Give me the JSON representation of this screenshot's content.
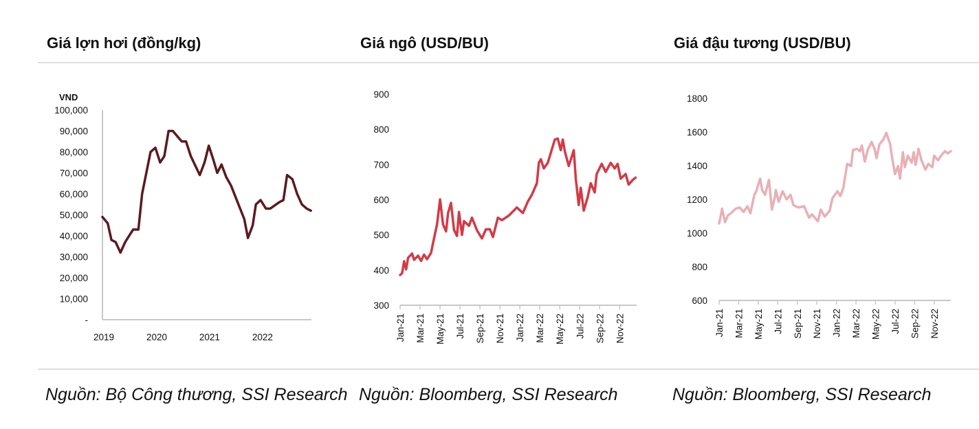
{
  "chart_data": [
    {
      "type": "line",
      "title": "Giá lợn hơi (đồng/kg)",
      "ylabel": "VND",
      "source": "Nguồn: Bộ Công thương, SSI Research",
      "color": "#5c1a1f",
      "ylim": [
        0,
        100000
      ],
      "yticks": [
        0,
        10000,
        20000,
        30000,
        40000,
        50000,
        60000,
        70000,
        80000,
        90000,
        100000
      ],
      "ytick_labels": [
        "-",
        "10,000",
        "20,000",
        "30,000",
        "40,000",
        "50,000",
        "60,000",
        "70,000",
        "80,000",
        "90,000",
        "100,000"
      ],
      "xlim": [
        2019,
        2022.95
      ],
      "xticks": [
        2019,
        2020,
        2021,
        2022
      ],
      "xtick_labels": [
        "2019",
        "2020",
        "2021",
        "2022"
      ],
      "points": [
        [
          2019.0,
          49000
        ],
        [
          2019.1,
          46000
        ],
        [
          2019.17,
          38000
        ],
        [
          2019.25,
          37000
        ],
        [
          2019.34,
          32000
        ],
        [
          2019.43,
          37000
        ],
        [
          2019.58,
          43000
        ],
        [
          2019.68,
          43000
        ],
        [
          2019.75,
          60000
        ],
        [
          2019.91,
          80000
        ],
        [
          2020.0,
          82000
        ],
        [
          2020.09,
          75000
        ],
        [
          2020.17,
          78000
        ],
        [
          2020.25,
          90000
        ],
        [
          2020.33,
          90000
        ],
        [
          2020.43,
          87000
        ],
        [
          2020.5,
          85000
        ],
        [
          2020.58,
          85000
        ],
        [
          2020.67,
          78000
        ],
        [
          2020.84,
          69000
        ],
        [
          2020.93,
          75000
        ],
        [
          2021.01,
          83000
        ],
        [
          2021.1,
          76000
        ],
        [
          2021.17,
          70000
        ],
        [
          2021.25,
          74000
        ],
        [
          2021.34,
          68000
        ],
        [
          2021.43,
          64000
        ],
        [
          2021.68,
          48000
        ],
        [
          2021.75,
          39000
        ],
        [
          2021.84,
          45000
        ],
        [
          2021.9,
          55000
        ],
        [
          2021.99,
          57000
        ],
        [
          2022.09,
          53000
        ],
        [
          2022.17,
          53000
        ],
        [
          2022.34,
          56000
        ],
        [
          2022.42,
          57000
        ],
        [
          2022.49,
          69000
        ],
        [
          2022.59,
          67000
        ],
        [
          2022.68,
          60000
        ],
        [
          2022.77,
          55000
        ],
        [
          2022.86,
          53000
        ],
        [
          2022.94,
          52000
        ]
      ]
    },
    {
      "type": "line",
      "title": "Giá ngô (USD/BU)",
      "source": "Nguồn: Bloomberg, SSI Research",
      "color": "#d33a46",
      "ylim": [
        300,
        900
      ],
      "yticks": [
        300,
        400,
        500,
        600,
        700,
        800,
        900
      ],
      "ytick_labels": [
        "300",
        "400",
        "500",
        "600",
        "700",
        "800",
        "900"
      ],
      "x_unit": "months since Jan-21",
      "xlim": [
        0,
        23.7
      ],
      "xticks": [
        0,
        2,
        4,
        6,
        8,
        10,
        12,
        14,
        16,
        18,
        20,
        22
      ],
      "xtick_labels": [
        "Jan-21",
        "Mar-21",
        "May-21",
        "Jul-21",
        "Sep-21",
        "Nov-21",
        "Jan-22",
        "Mar-22",
        "May-22",
        "Jul-22",
        "Sep-22",
        "Nov-22"
      ],
      "points": [
        [
          0,
          386
        ],
        [
          0.2,
          391
        ],
        [
          0.4,
          425
        ],
        [
          0.6,
          402
        ],
        [
          0.8,
          435
        ],
        [
          1.2,
          447
        ],
        [
          1.4,
          429
        ],
        [
          1.8,
          441
        ],
        [
          2.1,
          426
        ],
        [
          2.4,
          444
        ],
        [
          2.7,
          431
        ],
        [
          3.1,
          449
        ],
        [
          3.3,
          477
        ],
        [
          3.7,
          530
        ],
        [
          4.0,
          601
        ],
        [
          4.3,
          530
        ],
        [
          4.6,
          510
        ],
        [
          4.8,
          562
        ],
        [
          5.1,
          591
        ],
        [
          5.4,
          514
        ],
        [
          5.7,
          497
        ],
        [
          5.9,
          565
        ],
        [
          6.2,
          500
        ],
        [
          6.4,
          539
        ],
        [
          6.9,
          526
        ],
        [
          7.2,
          549
        ],
        [
          7.7,
          513
        ],
        [
          8.2,
          490
        ],
        [
          8.6,
          516
        ],
        [
          9.0,
          516
        ],
        [
          9.3,
          494
        ],
        [
          9.8,
          549
        ],
        [
          10.2,
          542
        ],
        [
          10.9,
          555
        ],
        [
          11.7,
          578
        ],
        [
          12.3,
          562
        ],
        [
          12.8,
          595
        ],
        [
          13.2,
          614
        ],
        [
          13.7,
          647
        ],
        [
          13.9,
          705
        ],
        [
          14.1,
          715
        ],
        [
          14.4,
          689
        ],
        [
          14.8,
          705
        ],
        [
          15.5,
          771
        ],
        [
          15.8,
          774
        ],
        [
          16.1,
          741
        ],
        [
          16.3,
          771
        ],
        [
          16.5,
          738
        ],
        [
          16.9,
          696
        ],
        [
          17.4,
          741
        ],
        [
          17.6,
          660
        ],
        [
          17.9,
          585
        ],
        [
          18.1,
          634
        ],
        [
          18.4,
          569
        ],
        [
          18.8,
          608
        ],
        [
          19.1,
          647
        ],
        [
          19.5,
          621
        ],
        [
          19.7,
          673
        ],
        [
          20.2,
          702
        ],
        [
          20.6,
          679
        ],
        [
          21.1,
          705
        ],
        [
          21.5,
          689
        ],
        [
          21.8,
          702
        ],
        [
          22.1,
          660
        ],
        [
          22.6,
          673
        ],
        [
          22.9,
          643
        ],
        [
          23.3,
          656
        ],
        [
          23.6,
          663
        ]
      ]
    },
    {
      "type": "line",
      "title": "Giá đậu tương (USD/BU)",
      "source": "Nguồn: Bloomberg, SSI Research",
      "color": "#e9b0b6",
      "ylim": [
        600,
        1800
      ],
      "yticks": [
        600,
        800,
        1000,
        1200,
        1400,
        1600,
        1800
      ],
      "ytick_labels": [
        "600",
        "800",
        "1000",
        "1200",
        "1400",
        "1600",
        "1800"
      ],
      "x_unit": "months since Jan-21",
      "xlim": [
        0,
        23.7
      ],
      "xticks": [
        0,
        2,
        4,
        6,
        8,
        10,
        12,
        14,
        16,
        18,
        20,
        22
      ],
      "xtick_labels": [
        "Jan-21",
        "Mar-21",
        "May-21",
        "Jul-21",
        "Sep-21",
        "Nov-21",
        "Jan-22",
        "Mar-22",
        "May-22",
        "Jul-22",
        "Sep-22",
        "Nov-22"
      ],
      "points": [
        [
          0,
          1057
        ],
        [
          0.2,
          1111
        ],
        [
          0.3,
          1145
        ],
        [
          0.6,
          1064
        ],
        [
          0.9,
          1105
        ],
        [
          1.2,
          1118
        ],
        [
          1.7,
          1145
        ],
        [
          2.1,
          1152
        ],
        [
          2.5,
          1125
        ],
        [
          2.9,
          1159
        ],
        [
          3.2,
          1118
        ],
        [
          3.6,
          1227
        ],
        [
          3.8,
          1248
        ],
        [
          4.0,
          1289
        ],
        [
          4.2,
          1323
        ],
        [
          4.4,
          1255
        ],
        [
          4.7,
          1227
        ],
        [
          5.1,
          1316
        ],
        [
          5.4,
          1139
        ],
        [
          5.7,
          1214
        ],
        [
          5.8,
          1255
        ],
        [
          6.1,
          1186
        ],
        [
          6.5,
          1248
        ],
        [
          6.9,
          1200
        ],
        [
          7.3,
          1227
        ],
        [
          7.6,
          1166
        ],
        [
          8.1,
          1152
        ],
        [
          8.7,
          1159
        ],
        [
          9.2,
          1091
        ],
        [
          9.5,
          1111
        ],
        [
          10.1,
          1070
        ],
        [
          10.4,
          1139
        ],
        [
          10.8,
          1098
        ],
        [
          11.3,
          1132
        ],
        [
          11.6,
          1207
        ],
        [
          12.1,
          1248
        ],
        [
          12.4,
          1220
        ],
        [
          12.7,
          1268
        ],
        [
          13.1,
          1411
        ],
        [
          13.5,
          1398
        ],
        [
          13.7,
          1493
        ],
        [
          14.1,
          1500
        ],
        [
          14.4,
          1486
        ],
        [
          14.6,
          1520
        ],
        [
          14.9,
          1425
        ],
        [
          15.2,
          1493
        ],
        [
          15.6,
          1541
        ],
        [
          15.9,
          1500
        ],
        [
          16.1,
          1445
        ],
        [
          16.4,
          1527
        ],
        [
          16.8,
          1555
        ],
        [
          17.1,
          1595
        ],
        [
          17.5,
          1527
        ],
        [
          17.7,
          1445
        ],
        [
          18.0,
          1350
        ],
        [
          18.3,
          1398
        ],
        [
          18.5,
          1323
        ],
        [
          18.8,
          1480
        ],
        [
          19.0,
          1391
        ],
        [
          19.3,
          1459
        ],
        [
          19.7,
          1418
        ],
        [
          19.9,
          1480
        ],
        [
          20.1,
          1405
        ],
        [
          20.4,
          1500
        ],
        [
          20.7,
          1432
        ],
        [
          21.1,
          1377
        ],
        [
          21.4,
          1411
        ],
        [
          21.8,
          1391
        ],
        [
          22.0,
          1459
        ],
        [
          22.4,
          1432
        ],
        [
          22.7,
          1459
        ],
        [
          23.1,
          1486
        ],
        [
          23.4,
          1473
        ],
        [
          23.7,
          1486
        ]
      ]
    }
  ]
}
